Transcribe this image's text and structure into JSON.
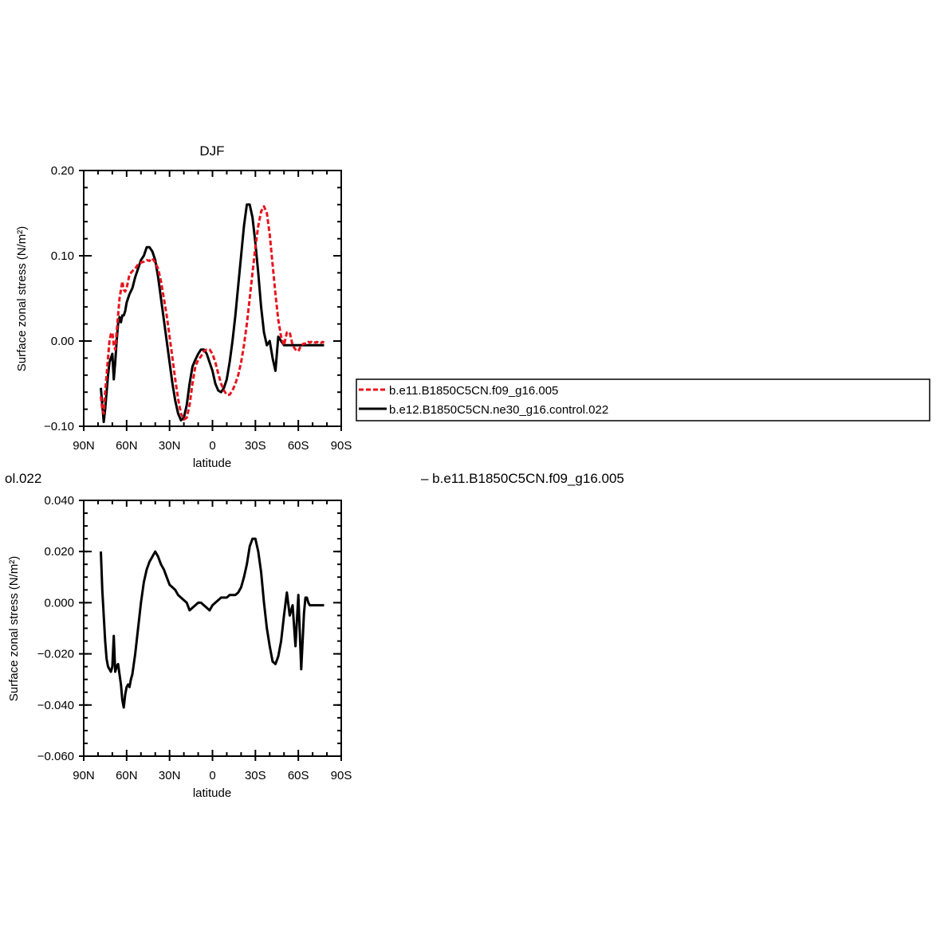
{
  "top_title": "DJF",
  "bottom_title_left": "ol.022",
  "bottom_title_right": "– b.e11.B1850C5CN.f09_g16.005",
  "legend": [
    {
      "label": "b.e11.B1850C5CN.f09_g16.005",
      "color": "#e8141e",
      "dash": true
    },
    {
      "label": "b.e12.B1850C5CN.ne30_g16.control.022",
      "color": "#000000",
      "dash": false
    }
  ],
  "chart_data": [
    {
      "type": "line",
      "title": "DJF",
      "xlabel": "latitude",
      "ylabel": "Surface zonal stress (N/m²)",
      "xlim": [
        90,
        -90
      ],
      "ylim": [
        -0.1,
        0.2
      ],
      "x_ticks": [
        {
          "value": 90,
          "label": "90N"
        },
        {
          "value": 60,
          "label": "60N"
        },
        {
          "value": 30,
          "label": "30N"
        },
        {
          "value": 0,
          "label": "0"
        },
        {
          "value": -30,
          "label": "30S"
        },
        {
          "value": -60,
          "label": "60S"
        },
        {
          "value": -90,
          "label": "90S"
        }
      ],
      "y_ticks": [
        {
          "value": 0.2,
          "label": "0.20"
        },
        {
          "value": 0.1,
          "label": "0.10"
        },
        {
          "value": 0.0,
          "label": "0.00"
        },
        {
          "value": -0.1,
          "label": "−0.10"
        }
      ],
      "series": [
        {
          "name": "b.e11.B1850C5CN.f09_g16.005",
          "color": "#e8141e",
          "dash": true,
          "x": [
            78,
            77,
            76,
            75,
            74,
            73,
            72,
            71,
            70,
            69,
            68,
            67,
            66,
            65,
            64,
            63,
            62,
            61,
            60,
            59,
            58,
            56,
            54,
            52,
            50,
            48,
            46,
            44,
            42,
            40,
            38,
            36,
            34,
            32,
            30,
            28,
            26,
            24,
            22,
            20,
            18,
            16,
            14,
            12,
            10,
            8,
            6,
            4,
            2,
            0,
            -2,
            -4,
            -6,
            -8,
            -10,
            -12,
            -14,
            -16,
            -18,
            -20,
            -22,
            -24,
            -26,
            -28,
            -30,
            -32,
            -34,
            -36,
            -38,
            -40,
            -42,
            -44,
            -46,
            -48,
            -50,
            -52,
            -54,
            -56,
            -58,
            -60,
            -62,
            -64,
            -66,
            -67,
            -68,
            -69,
            -70,
            -71,
            -72,
            -73,
            -74,
            -75,
            -76,
            -77,
            -78
          ],
          "y": [
            -0.065,
            -0.08,
            -0.085,
            -0.06,
            -0.04,
            -0.02,
            0.0,
            0.008,
            0.01,
            -0.005,
            -0.01,
            0.01,
            0.03,
            0.05,
            0.06,
            0.07,
            0.06,
            0.058,
            0.062,
            0.07,
            0.078,
            0.082,
            0.085,
            0.09,
            0.092,
            0.093,
            0.095,
            0.094,
            0.097,
            0.092,
            0.085,
            0.07,
            0.05,
            0.03,
            0.005,
            -0.02,
            -0.045,
            -0.068,
            -0.085,
            -0.092,
            -0.09,
            -0.075,
            -0.05,
            -0.03,
            -0.022,
            -0.018,
            -0.012,
            -0.01,
            -0.01,
            -0.015,
            -0.025,
            -0.038,
            -0.05,
            -0.058,
            -0.063,
            -0.063,
            -0.058,
            -0.05,
            -0.04,
            -0.025,
            -0.005,
            0.02,
            0.05,
            0.08,
            0.11,
            0.135,
            0.152,
            0.158,
            0.15,
            0.125,
            0.09,
            0.055,
            0.025,
            0.005,
            -0.005,
            0.01,
            0.01,
            -0.005,
            -0.01,
            -0.012,
            -0.005,
            -0.003,
            -0.003,
            -0.001,
            -0.002,
            -0.001,
            -0.002,
            -0.001,
            -0.002,
            -0.001,
            -0.002,
            -0.001,
            -0.002,
            -0.001,
            -0.002
          ]
        },
        {
          "name": "b.e12.B1850C5CN.ne30_g16.control.022",
          "color": "#000000",
          "dash": false,
          "x": [
            78,
            77,
            76,
            75,
            74,
            73,
            72,
            71,
            70,
            69,
            68,
            67,
            66,
            65,
            64,
            63,
            62,
            61,
            60,
            58,
            56,
            54,
            52,
            50,
            48,
            46,
            44,
            42,
            40,
            38,
            36,
            34,
            32,
            30,
            28,
            26,
            24,
            22,
            20,
            18,
            16,
            14,
            12,
            10,
            8,
            6,
            4,
            2,
            0,
            -2,
            -4,
            -6,
            -8,
            -10,
            -12,
            -14,
            -16,
            -18,
            -20,
            -22,
            -24,
            -26,
            -28,
            -30,
            -32,
            -34,
            -36,
            -38,
            -40,
            -42,
            -44,
            -46,
            -48,
            -50,
            -52,
            -54,
            -56,
            -58,
            -60,
            -62,
            -64,
            -65,
            -66,
            -67,
            -68,
            -69,
            -70,
            -71,
            -72,
            -73,
            -74,
            -75,
            -76,
            -77,
            -78
          ],
          "y": [
            -0.055,
            -0.075,
            -0.095,
            -0.08,
            -0.06,
            -0.04,
            -0.025,
            -0.02,
            -0.015,
            -0.045,
            -0.025,
            0.0,
            0.02,
            0.028,
            0.022,
            0.03,
            0.03,
            0.035,
            0.045,
            0.055,
            0.062,
            0.075,
            0.085,
            0.095,
            0.1,
            0.11,
            0.11,
            0.105,
            0.095,
            0.075,
            0.05,
            0.025,
            0.0,
            -0.025,
            -0.05,
            -0.07,
            -0.085,
            -0.093,
            -0.09,
            -0.075,
            -0.05,
            -0.03,
            -0.022,
            -0.015,
            -0.01,
            -0.01,
            -0.015,
            -0.025,
            -0.035,
            -0.05,
            -0.058,
            -0.06,
            -0.055,
            -0.045,
            -0.025,
            0.0,
            0.03,
            0.065,
            0.1,
            0.135,
            0.16,
            0.16,
            0.145,
            0.115,
            0.08,
            0.04,
            0.01,
            -0.005,
            0.0,
            -0.02,
            -0.035,
            0.005,
            0.0,
            -0.005,
            -0.005,
            -0.005,
            -0.005,
            -0.005,
            -0.005,
            -0.005,
            -0.005,
            -0.005,
            -0.005,
            -0.005,
            -0.005,
            -0.005,
            -0.005,
            -0.005,
            -0.005,
            -0.005,
            -0.005,
            -0.005,
            -0.005,
            -0.005,
            -0.005
          ]
        }
      ]
    },
    {
      "type": "line",
      "title": "ol.022 – b.e11.B1850C5CN.f09_g16.005",
      "xlabel": "latitude",
      "ylabel": "Surface zonal stress (N/m²)",
      "xlim": [
        90,
        -90
      ],
      "ylim": [
        -0.06,
        0.04
      ],
      "x_ticks": [
        {
          "value": 90,
          "label": "90N"
        },
        {
          "value": 60,
          "label": "60N"
        },
        {
          "value": 30,
          "label": "30N"
        },
        {
          "value": 0,
          "label": "0"
        },
        {
          "value": -30,
          "label": "30S"
        },
        {
          "value": -60,
          "label": "60S"
        },
        {
          "value": -90,
          "label": "90S"
        }
      ],
      "y_ticks": [
        {
          "value": 0.04,
          "label": "0.040"
        },
        {
          "value": 0.02,
          "label": "0.020"
        },
        {
          "value": 0.0,
          "label": "0.000"
        },
        {
          "value": -0.02,
          "label": "−0.020"
        },
        {
          "value": -0.04,
          "label": "−0.040"
        },
        {
          "value": -0.06,
          "label": "−0.060"
        }
      ],
      "series": [
        {
          "name": "",
          "color": "#000000",
          "dash": false,
          "x": [
            78,
            77,
            76,
            75,
            74,
            73,
            72,
            71,
            70,
            69,
            68,
            67,
            66,
            65,
            64,
            63,
            62,
            61,
            60,
            59,
            58,
            57,
            56,
            55,
            54,
            53,
            52,
            51,
            50,
            48,
            46,
            44,
            42,
            40,
            38,
            36,
            34,
            32,
            30,
            28,
            26,
            24,
            22,
            20,
            18,
            16,
            14,
            12,
            10,
            8,
            6,
            4,
            2,
            0,
            -2,
            -4,
            -6,
            -8,
            -10,
            -12,
            -14,
            -16,
            -18,
            -20,
            -22,
            -24,
            -26,
            -28,
            -30,
            -32,
            -34,
            -36,
            -38,
            -40,
            -42,
            -44,
            -46,
            -48,
            -50,
            -52,
            -54,
            -56,
            -58,
            -60,
            -62,
            -64,
            -65,
            -66,
            -67,
            -68,
            -69,
            -70,
            -71,
            -72,
            -73,
            -74,
            -75,
            -76,
            -77,
            -78
          ],
          "y": [
            0.02,
            0.005,
            -0.005,
            -0.015,
            -0.022,
            -0.025,
            -0.026,
            -0.027,
            -0.025,
            -0.013,
            -0.027,
            -0.025,
            -0.024,
            -0.028,
            -0.032,
            -0.038,
            -0.041,
            -0.036,
            -0.033,
            -0.032,
            -0.033,
            -0.03,
            -0.028,
            -0.024,
            -0.02,
            -0.015,
            -0.01,
            -0.005,
            0.0,
            0.008,
            0.013,
            0.016,
            0.018,
            0.02,
            0.018,
            0.015,
            0.013,
            0.01,
            0.007,
            0.006,
            0.005,
            0.003,
            0.002,
            0.001,
            0.0,
            -0.003,
            -0.002,
            -0.001,
            0.0,
            0.0,
            -0.001,
            -0.002,
            -0.003,
            -0.001,
            0.0,
            0.001,
            0.002,
            0.002,
            0.002,
            0.003,
            0.003,
            0.003,
            0.004,
            0.006,
            0.01,
            0.015,
            0.022,
            0.025,
            0.025,
            0.02,
            0.012,
            0.0,
            -0.01,
            -0.017,
            -0.023,
            -0.024,
            -0.021,
            -0.015,
            -0.005,
            0.004,
            -0.005,
            -0.001,
            -0.017,
            0.003,
            -0.026,
            -0.004,
            0.002,
            0.002,
            0.0,
            -0.001,
            -0.001,
            -0.001,
            -0.001,
            -0.001,
            -0.001,
            -0.001,
            -0.001,
            -0.001,
            -0.001,
            -0.001
          ]
        }
      ]
    }
  ]
}
